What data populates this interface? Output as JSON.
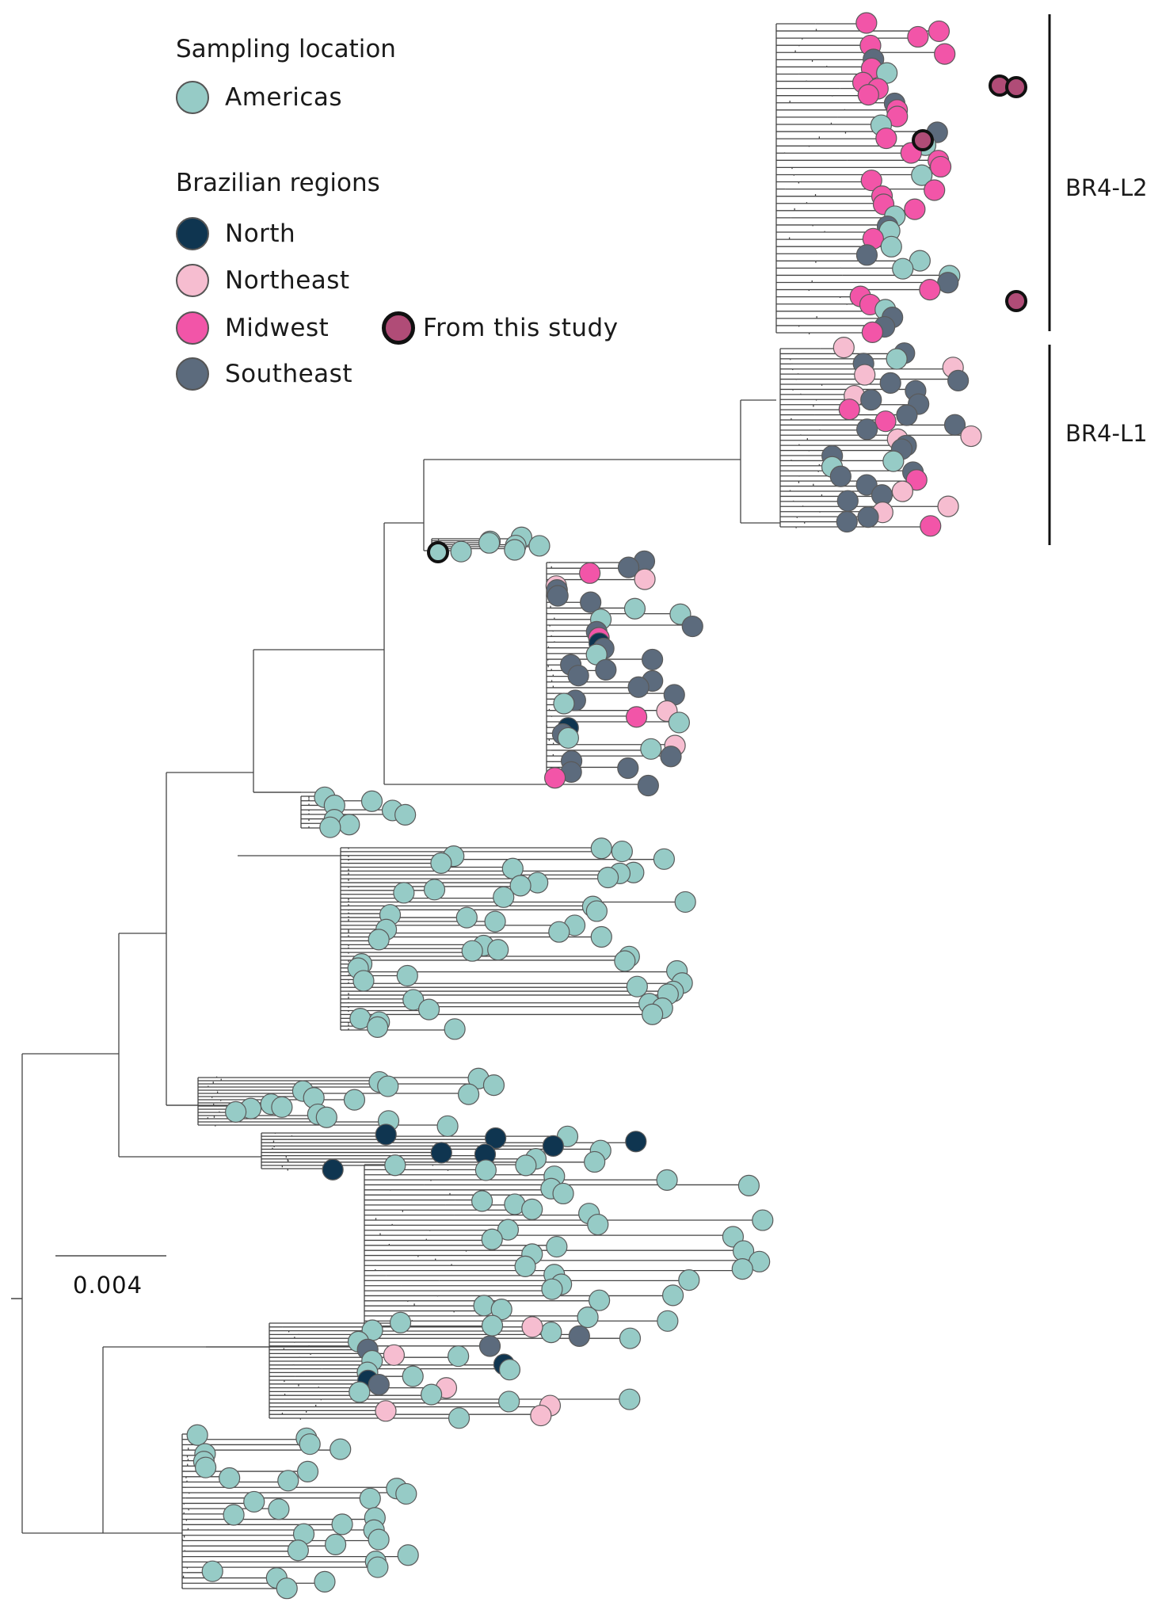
{
  "legend": {
    "sampling_title": "Sampling location",
    "sampling_items": [
      {
        "label": "Americas",
        "color": "#96cbc6"
      }
    ],
    "regions_title": "Brazilian regions",
    "region_items": [
      {
        "label": "North",
        "color": "#0f3550"
      },
      {
        "label": "Northeast",
        "color": "#f6bdd0"
      },
      {
        "label": "Midwest",
        "color": "#f255a8"
      },
      {
        "label": "Southeast",
        "color": "#5c6b7d"
      }
    ],
    "study_item": {
      "label": "From this study",
      "color": "#b04c77"
    }
  },
  "clades": [
    {
      "label": "BR4-L2"
    },
    {
      "label": "BR4-L1"
    }
  ],
  "scale_bar": {
    "label": "0.004"
  },
  "colors": {
    "americas": "#96cbc6",
    "north": "#0f3550",
    "northeast": "#f6bdd0",
    "midwest": "#f255a8",
    "southeast": "#5c6b7d",
    "study": "#b04c77",
    "branch": "#444444"
  }
}
